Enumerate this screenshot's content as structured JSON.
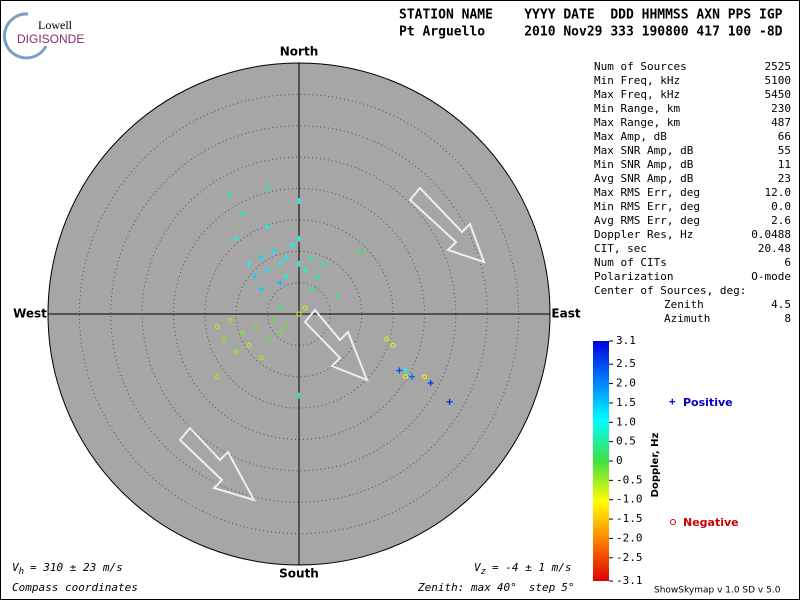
{
  "logo": {
    "top": "Lowell",
    "bottom": "DIGISONDE"
  },
  "header": {
    "line1": "STATION NAME    YYYY DATE  DDD HHMMSS AXN PPS IGP",
    "line2": "Pt Arguello     2010 Nov29 333 190800 417 100 -8D"
  },
  "directions": {
    "north": "North",
    "south": "South",
    "west": "West",
    "east": "East"
  },
  "stats": [
    [
      "Num of Sources",
      "2525"
    ],
    [
      "Min Freq, kHz",
      "5100"
    ],
    [
      "Max Freq, kHz",
      "5450"
    ],
    [
      "Min Range, km",
      "230"
    ],
    [
      "Max Range, km",
      "487"
    ],
    [
      "Max Amp, dB",
      "66"
    ],
    [
      "Max SNR Amp, dB",
      "55"
    ],
    [
      "Min SNR Amp, dB",
      "11"
    ],
    [
      "Avg SNR Amp, dB",
      "23"
    ],
    [
      "Max RMS Err, deg",
      "12.0"
    ],
    [
      "Min RMS Err, deg",
      "0.0"
    ],
    [
      "Avg RMS Err, deg",
      "2.6"
    ],
    [
      "Doppler Res, Hz",
      "0.0488"
    ],
    [
      "CIT, sec",
      "20.48"
    ],
    [
      "Num of CITs",
      "6"
    ],
    [
      "Polarization",
      "O-mode"
    ]
  ],
  "center": {
    "heading": "Center of Sources, deg:",
    "rows": [
      [
        "Zenith",
        "4.5"
      ],
      [
        "Azimuth",
        "8"
      ]
    ]
  },
  "colorbar": {
    "label": "Doppler, Hz",
    "lim": [
      -3.1,
      3.1
    ],
    "ticks": [
      3.1,
      2.5,
      {
        "value": 2,
        "label": "2.0"
      },
      1.5,
      {
        "value": 1,
        "label": "1.0"
      },
      0.5,
      0,
      -0.5,
      {
        "value": -1,
        "label": "-1.0"
      },
      -1.5,
      {
        "value": -2,
        "label": "-2.0"
      },
      -2.5,
      -3.1
    ]
  },
  "legend": {
    "positive": "Positive",
    "negative": "Negative"
  },
  "vh": {
    "symbol": "V",
    "sub": "h",
    "text": "= 310 ± 23 m/s"
  },
  "vz": {
    "symbol": "V",
    "sub": "z",
    "text": "= -4 ± 1 m/s"
  },
  "coords": "Compass coordinates",
  "zenith": {
    "label": "Zenith: max",
    "max": 40,
    "unit": "°",
    "step_label": "step",
    "step": 5
  },
  "version": "ShowSkymap v 1.0  SD v 5.0",
  "sources": {
    "east": [
      -3,
      -5,
      -2,
      0,
      -6,
      -4,
      1,
      2,
      -1,
      -7,
      -8,
      3,
      4,
      -2,
      0,
      -10,
      -11,
      -5,
      -9,
      -5,
      0,
      -6,
      -3,
      2,
      6,
      10,
      -3,
      0,
      16,
      18,
      21,
      24,
      17,
      -7,
      -9,
      -5,
      -11,
      -8,
      -4,
      -12,
      -6,
      -10,
      -2,
      -13,
      -3,
      0,
      1,
      -13,
      15,
      17,
      20,
      14
    ],
    "north": [
      8,
      7,
      9,
      8,
      9,
      10,
      7,
      9,
      11,
      6,
      8,
      6,
      8,
      6,
      12,
      12,
      19,
      14,
      16,
      20,
      18,
      4,
      5,
      4,
      3,
      10,
      1,
      -13,
      -9,
      -10,
      -11,
      -14,
      -9,
      -2,
      -3,
      -4,
      -1,
      -5,
      -1,
      -4,
      -7,
      -6,
      -2,
      -2,
      -3,
      0,
      1,
      -10,
      -5,
      -10,
      -10,
      -4
    ],
    "doppler": [
      1.1,
      1.2,
      1.0,
      0.9,
      1.3,
      1.2,
      0.8,
      0.7,
      1.0,
      1.4,
      1.1,
      0.6,
      0.5,
      0.8,
      0.9,
      0.9,
      0.6,
      0.9,
      0.4,
      0.4,
      1.0,
      1.4,
      1.5,
      0.3,
      0.3,
      0.2,
      0.4,
      0.5,
      2.5,
      2.3,
      2.7,
      2.8,
      0.9,
      -0.3,
      -0.4,
      -0.2,
      -0.5,
      -0.6,
      -0.1,
      -0.4,
      -0.5,
      -0.5,
      -0.2,
      -0.6,
      -0.3,
      -0.8,
      -0.7,
      -0.5,
      -0.9,
      -0.9,
      -1.0,
      -0.9
    ]
  }
}
